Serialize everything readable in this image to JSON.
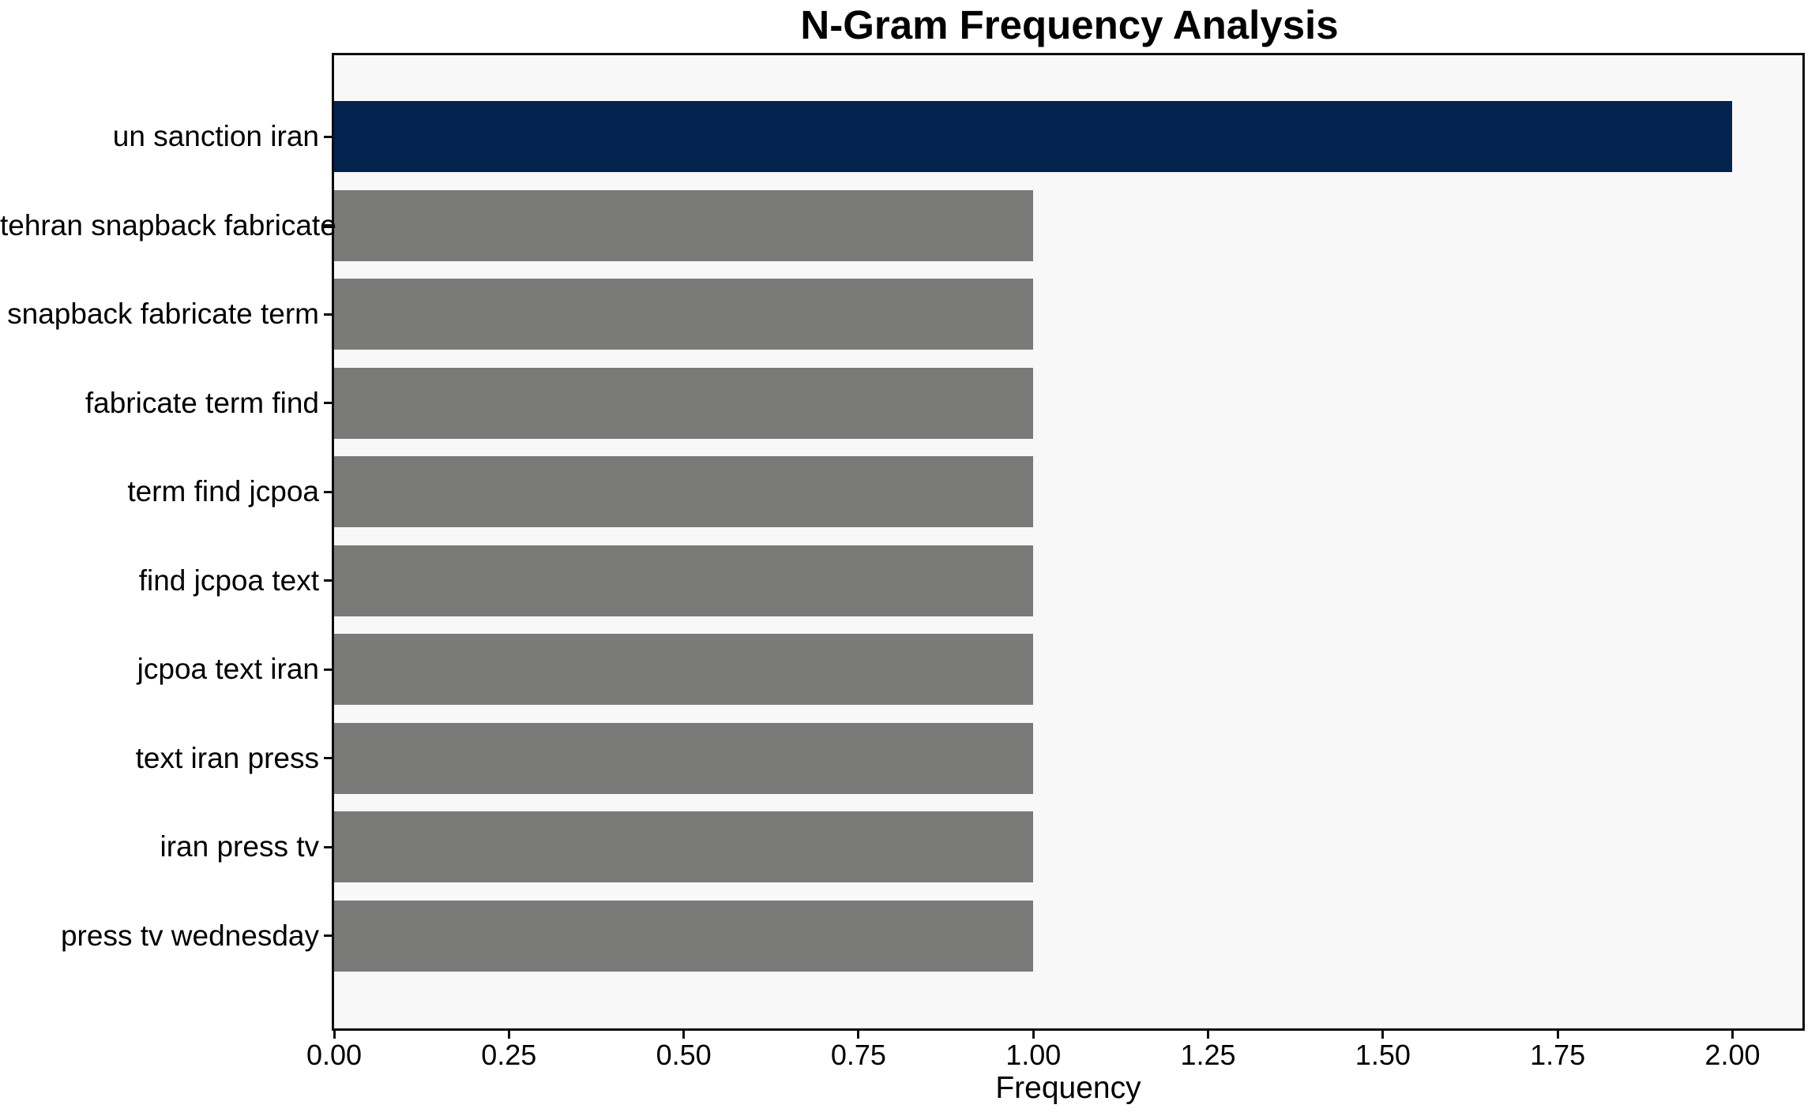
{
  "chart_data": {
    "type": "bar",
    "orientation": "horizontal",
    "title": "N-Gram Frequency Analysis",
    "xlabel": "Frequency",
    "ylabel": "",
    "categories": [
      "un sanction iran",
      "tehran snapback fabricate",
      "snapback fabricate term",
      "fabricate term find",
      "term find jcpoa",
      "find jcpoa text",
      "jcpoa text iran",
      "text iran press",
      "iran press tv",
      "press tv wednesday"
    ],
    "values": [
      2,
      1,
      1,
      1,
      1,
      1,
      1,
      1,
      1,
      1
    ],
    "bar_colors": [
      "#01234e",
      "#7a7a78",
      "#7a7a78",
      "#7a7a78",
      "#7a7a78",
      "#7a7a78",
      "#7a7a78",
      "#7a7a78",
      "#7a7a78",
      "#7a7a78"
    ],
    "xlim": [
      0,
      2.1
    ],
    "xticks": [
      0,
      0.25,
      0.5,
      0.75,
      1,
      1.25,
      1.5,
      1.75,
      2
    ],
    "xtick_labels": [
      "0.00",
      "0.25",
      "0.50",
      "0.75",
      "1.00",
      "1.25",
      "1.50",
      "1.75",
      "2.00"
    ],
    "grid": false,
    "legend": "none",
    "colors": {
      "highlight_bar": "#01234e",
      "default_bar": "#7a7a78",
      "plot_background": "#f8f8f8",
      "figure_background": "#ffffff",
      "axis_frame": "#0d0d0d",
      "text": "#000000"
    }
  }
}
